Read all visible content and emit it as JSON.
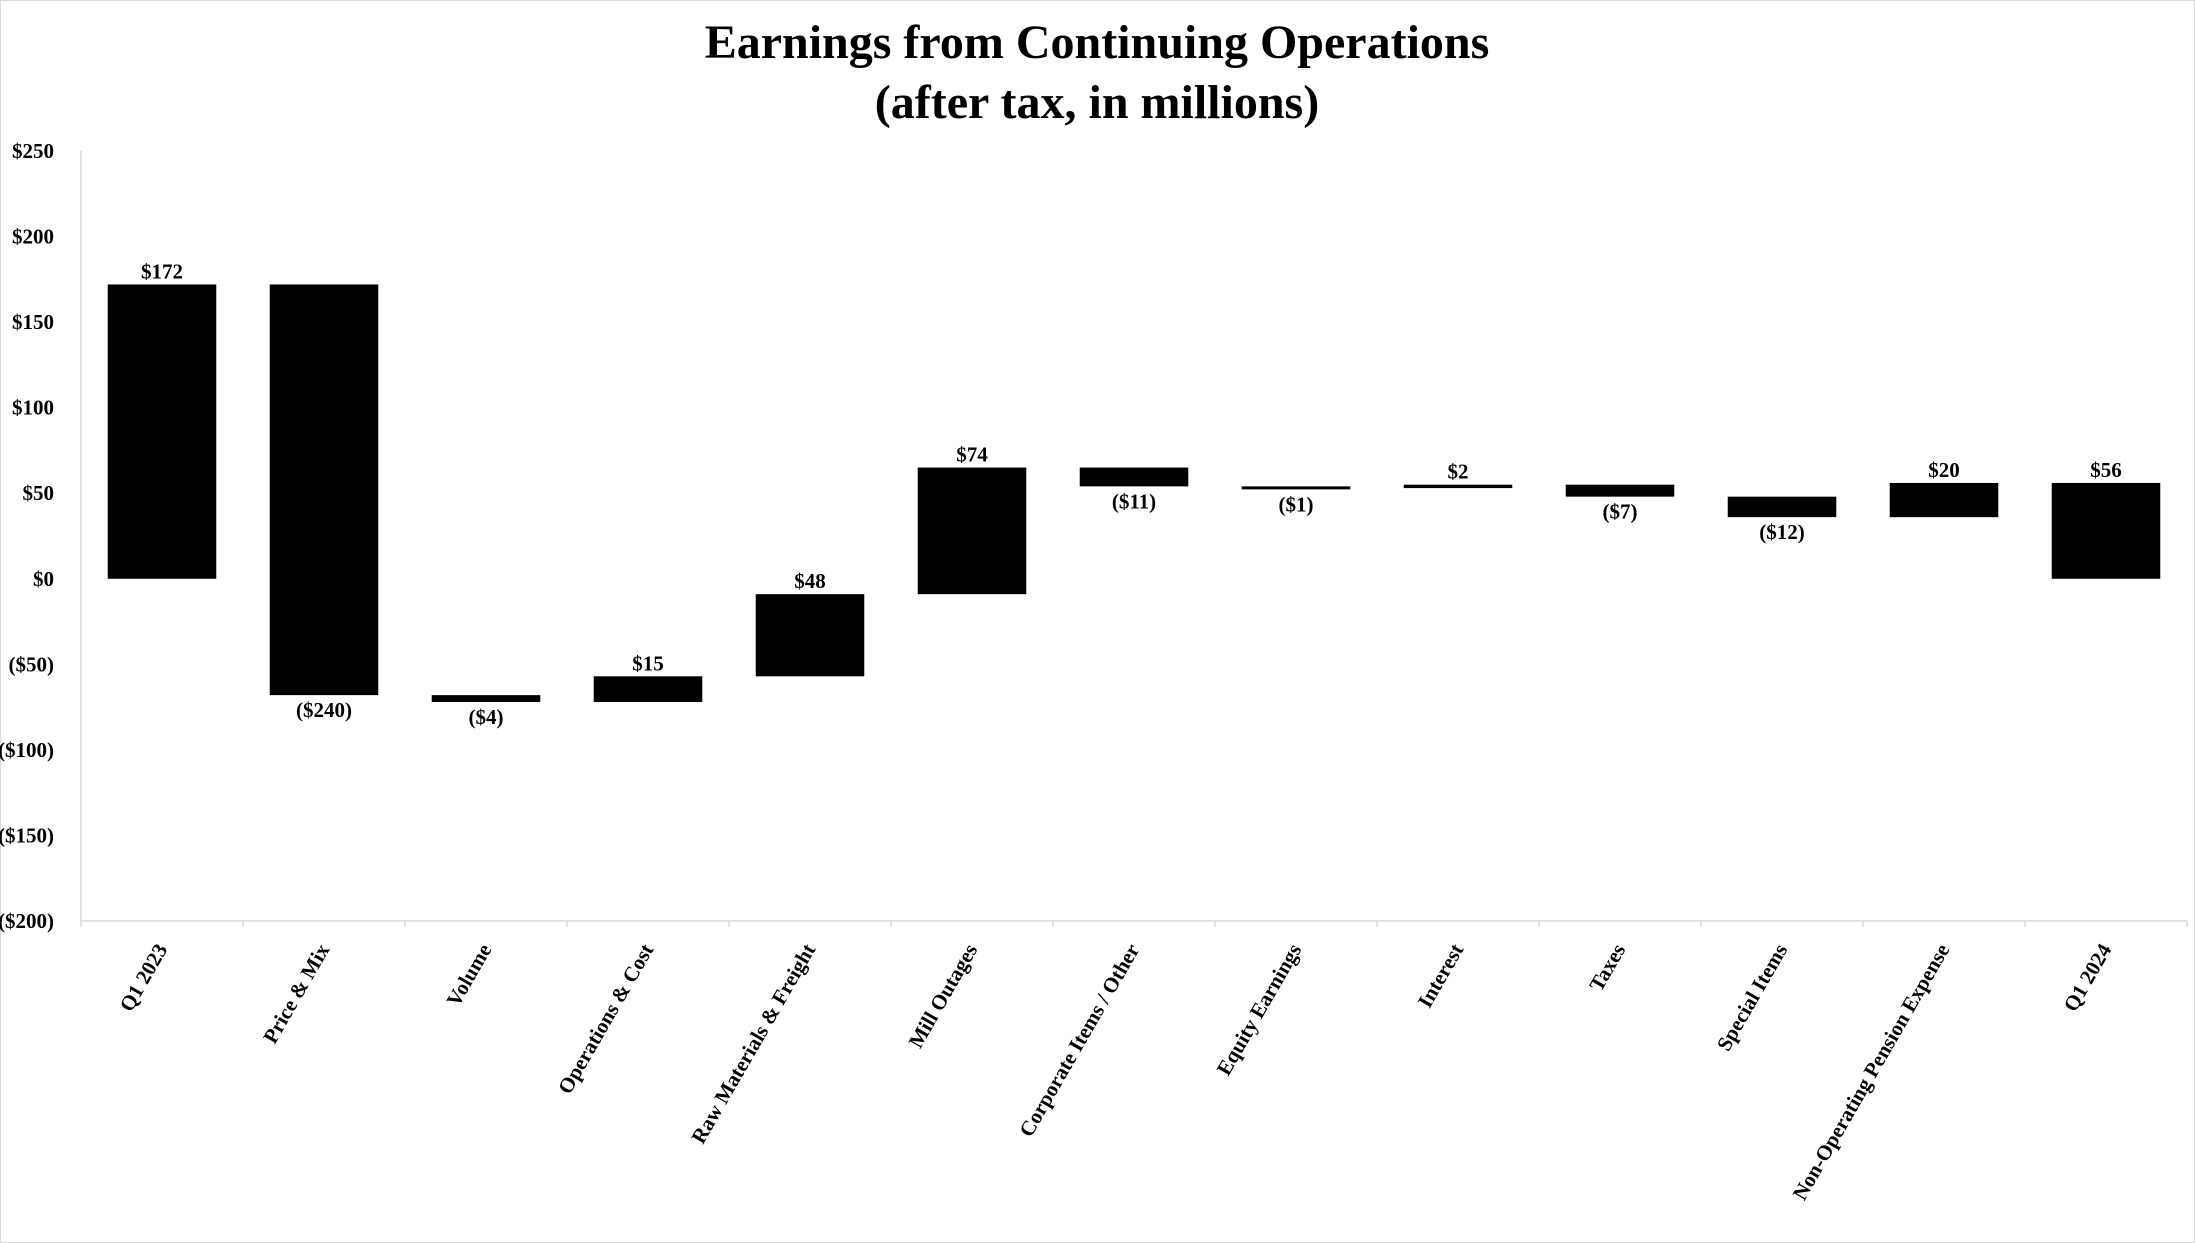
{
  "chart_data": {
    "type": "waterfall",
    "title": [
      "Earnings from Continuing Operations",
      "(after tax, in millions)"
    ],
    "xlabel": "",
    "ylabel": "",
    "ylim": [
      -200,
      250
    ],
    "yticks": [
      250,
      200,
      150,
      100,
      50,
      0,
      -50,
      -100,
      -150,
      -200
    ],
    "ytick_labels": [
      "$250",
      "$200",
      "$150",
      "$100",
      "$50",
      "$0",
      "($50)",
      "($100)",
      "($150)",
      "($200)"
    ],
    "grid": false,
    "bar_color": "#000000",
    "categories": [
      "Q1 2023",
      "Price & Mix",
      "Volume",
      "Operations & Cost",
      "Raw Materials & Freight",
      "Mill Outages",
      "Corporate Items / Other",
      "Equity Earnings",
      "Interest",
      "Taxes",
      "Special Items",
      "Non-Operating Pension Expense",
      "Q1 2024"
    ],
    "values": [
      172,
      -240,
      -4,
      15,
      48,
      74,
      -11,
      -1,
      2,
      -7,
      -12,
      20,
      56
    ],
    "kinds": [
      "total",
      "delta",
      "delta",
      "delta",
      "delta",
      "delta",
      "delta",
      "delta",
      "delta",
      "delta",
      "delta",
      "delta",
      "total"
    ],
    "data_labels": [
      "$172",
      "($240)",
      "($4)",
      "$15",
      "$48",
      "$74",
      "($11)",
      "($1)",
      "$2",
      "($7)",
      "($12)",
      "$20",
      "$56"
    ]
  }
}
